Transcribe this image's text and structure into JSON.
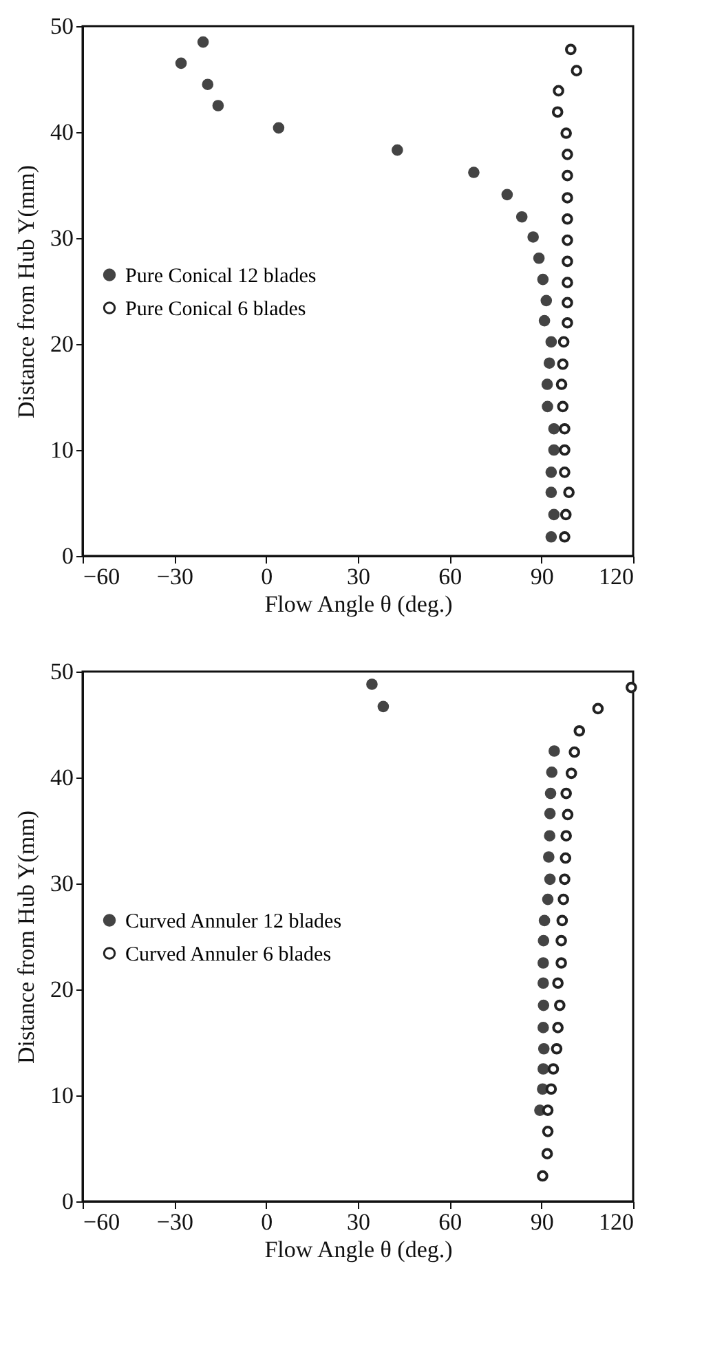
{
  "chart_data": [
    {
      "type": "scatter",
      "xlabel": "Flow Angle θ (deg.)",
      "ylabel": "Distance from Hub Y(mm)",
      "xlim": [
        -60,
        120
      ],
      "xticks": [
        -60,
        -30,
        0,
        30,
        60,
        90,
        120
      ],
      "ylim": [
        0,
        50
      ],
      "yticks": [
        0,
        10,
        20,
        30,
        40,
        50
      ],
      "grid": false,
      "legend": "left",
      "marker": "circle",
      "series": [
        {
          "name": "Pure Conical 12 blades",
          "color": "#444444",
          "x": [
            -20.6,
            -27.8,
            -19.1,
            -15.7,
            4.1,
            42.9,
            67.9,
            78.8,
            83.6,
            87.3,
            89.2,
            90.5,
            91.6,
            91.0,
            93.2,
            92.6,
            91.9,
            92.0,
            94.1,
            94.1,
            93.2,
            93.2,
            94.1,
            93.2
          ],
          "values": [
            48.5,
            46.5,
            44.5,
            42.5,
            40.4,
            38.3,
            36.2,
            34.1,
            32.0,
            30.1,
            28.1,
            26.1,
            24.1,
            22.2,
            20.2,
            18.2,
            16.2,
            14.1,
            12.0,
            10.0,
            7.9,
            6.0,
            3.9,
            1.8
          ]
        },
        {
          "name": "Pure Conical 6 blades",
          "color": "#222222",
          "x": [
            99.6,
            101.5,
            95.6,
            95.3,
            98.1,
            98.5,
            98.5,
            98.5,
            98.5,
            98.5,
            98.5,
            98.5,
            98.5,
            98.5,
            97.3,
            97.0,
            96.6,
            97.0,
            97.6,
            97.6,
            97.6,
            99.0,
            98.0,
            97.6
          ],
          "values": [
            47.8,
            45.8,
            43.9,
            41.9,
            39.9,
            37.9,
            35.9,
            33.8,
            31.8,
            29.8,
            27.8,
            25.8,
            23.9,
            22.0,
            20.2,
            18.1,
            16.2,
            14.1,
            12.0,
            10.0,
            7.9,
            6.0,
            3.9,
            1.8
          ]
        }
      ]
    },
    {
      "type": "scatter",
      "xlabel": "Flow Angle θ (deg.)",
      "ylabel": "Distance from Hub Y(mm)",
      "xlim": [
        -60,
        120
      ],
      "xticks": [
        -60,
        -30,
        0,
        30,
        60,
        90,
        120
      ],
      "ylim": [
        0,
        50
      ],
      "yticks": [
        0,
        10,
        20,
        30,
        40,
        50
      ],
      "grid": false,
      "legend": "left",
      "marker": "circle",
      "series": [
        {
          "name": "Curved Annuler 12 blades",
          "color": "#444444",
          "x": [
            34.6,
            38.3,
            94.2,
            93.4,
            93.0,
            92.8,
            92.7,
            92.4,
            92.8,
            92.1,
            91.0,
            90.7,
            90.6,
            90.6,
            90.7,
            90.6,
            90.8,
            90.6,
            90.4,
            89.5
          ],
          "values": [
            48.8,
            46.7,
            42.5,
            40.5,
            38.5,
            36.6,
            34.5,
            32.5,
            30.4,
            28.5,
            26.5,
            24.6,
            22.5,
            20.6,
            18.5,
            16.4,
            14.4,
            12.5,
            10.6,
            8.6
          ]
        },
        {
          "name": "Curved Annuler 6 blades",
          "color": "#222222",
          "x": [
            119.4,
            108.5,
            102.4,
            100.8,
            99.8,
            98.1,
            98.6,
            98.1,
            97.9,
            97.6,
            97.2,
            96.8,
            96.5,
            96.5,
            95.4,
            96.0,
            95.4,
            95.0,
            93.9,
            93.2,
            92.1,
            92.1,
            91.9,
            90.4
          ],
          "values": [
            48.5,
            46.5,
            44.4,
            42.4,
            40.4,
            38.5,
            36.5,
            34.5,
            32.4,
            30.4,
            28.5,
            26.5,
            24.6,
            22.5,
            20.6,
            18.5,
            16.4,
            14.4,
            12.5,
            10.6,
            8.6,
            6.6,
            4.5,
            2.4
          ]
        }
      ]
    }
  ]
}
